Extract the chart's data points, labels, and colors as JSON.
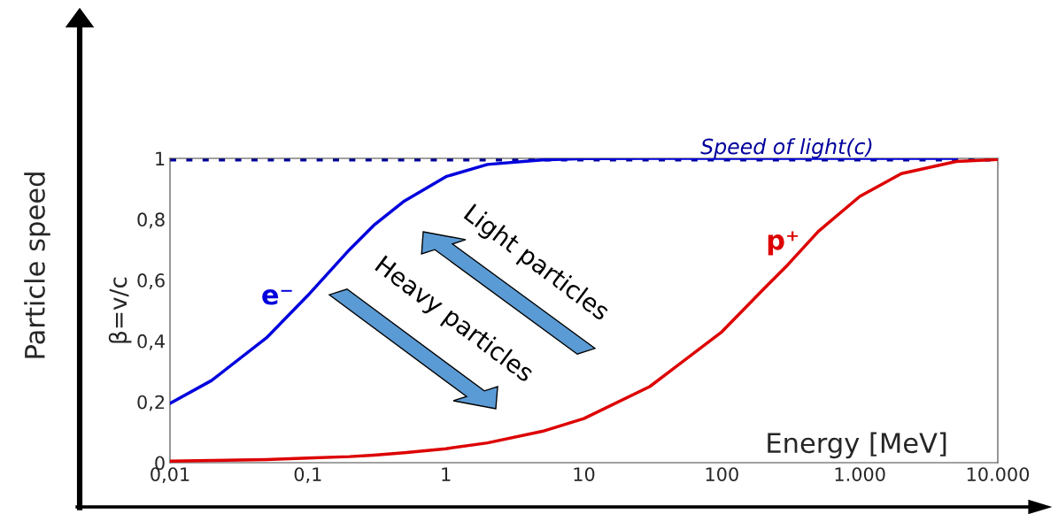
{
  "chart_data": {
    "type": "line",
    "xlabel": "Energy [MeV]",
    "ylabel": "β=v/c",
    "x": [
      0.01,
      0.02,
      0.05,
      0.1,
      0.2,
      0.3,
      0.5,
      1,
      2,
      5,
      10,
      30,
      100,
      200,
      300,
      500,
      1000,
      2000,
      5000,
      10000
    ],
    "series": [
      {
        "name": "e⁻",
        "color": "#0000dd",
        "values": [
          0.195,
          0.27,
          0.41,
          0.55,
          0.7,
          0.78,
          0.86,
          0.94,
          0.98,
          0.995,
          0.999,
          1.0,
          1.0,
          1.0,
          1.0,
          1.0,
          1.0,
          1.0,
          1.0,
          null
        ]
      },
      {
        "name": "p⁺",
        "color": "#dd0000",
        "values": [
          0.005,
          0.007,
          0.01,
          0.015,
          0.02,
          0.025,
          0.033,
          0.046,
          0.065,
          0.103,
          0.145,
          0.25,
          0.43,
          0.57,
          0.65,
          0.76,
          0.875,
          0.95,
          0.99,
          0.996
        ]
      }
    ],
    "log": "x",
    "xlim": [
      0.01,
      10000
    ],
    "ylim": [
      0,
      1
    ],
    "xticks": [
      {
        "value": 0.01,
        "label": "0,01"
      },
      {
        "value": 0.1,
        "label": "0,1"
      },
      1,
      10,
      100,
      {
        "value": 1000,
        "label": "1.000"
      },
      {
        "value": 10000,
        "label": "10.000"
      }
    ],
    "yticks": [
      0,
      {
        "value": 0.2,
        "label": "0,2"
      },
      {
        "value": 0.4,
        "label": "0,4"
      },
      {
        "value": 0.6,
        "label": "0,6"
      },
      {
        "value": 0.8,
        "label": "0,8"
      },
      1
    ],
    "ref_lines": [
      {
        "axis": "y",
        "value": 1,
        "label": "Speed of light(c)",
        "color": "#00009c",
        "line_style": "dotted"
      }
    ],
    "annotations": [
      "Particle speed",
      "Light particles",
      "Heavy particles"
    ],
    "grid": false,
    "legend": false,
    "marker": "none",
    "line_style": "solid"
  }
}
